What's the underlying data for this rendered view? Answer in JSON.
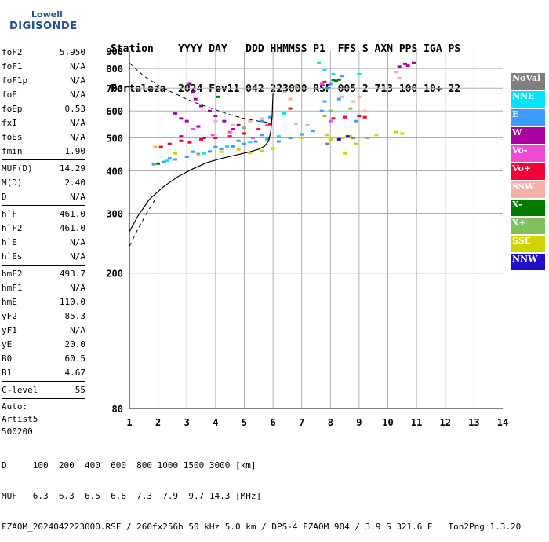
{
  "logo": {
    "line1": "Lowell",
    "line2": "DIGISONDE"
  },
  "header": {
    "line1": "Station    YYYY DAY   DDD HHMMSS P1  FFS S AXN PPS IGA PS",
    "line2": "Fortaleza  2024 Fev11 042 223000 RSF 005 2 713 100 10+ 22"
  },
  "params": [
    {
      "label": "foF2",
      "value": "5.950"
    },
    {
      "label": "foF1",
      "value": "N/A"
    },
    {
      "label": "foF1p",
      "value": "N/A"
    },
    {
      "label": "foE",
      "value": "N/A"
    },
    {
      "label": "foEp",
      "value": "0.53"
    },
    {
      "label": "fxI",
      "value": "N/A"
    },
    {
      "label": "foEs",
      "value": "N/A"
    },
    {
      "label": "fmin",
      "value": "1.90"
    },
    {
      "sep": true
    },
    {
      "label": "MUF(D)",
      "value": "14.29"
    },
    {
      "label": "M(D)",
      "value": "2.40"
    },
    {
      "label": "D",
      "value": "N/A"
    },
    {
      "sep": true
    },
    {
      "label": "h`F",
      "value": "461.0"
    },
    {
      "label": "h`F2",
      "value": "461.0"
    },
    {
      "label": "h`E",
      "value": "N/A"
    },
    {
      "label": "h`Es",
      "value": "N/A"
    },
    {
      "sep": true
    },
    {
      "label": "hmF2",
      "value": "493.7"
    },
    {
      "label": "hmF1",
      "value": "N/A"
    },
    {
      "label": "hmE",
      "value": "110.0"
    },
    {
      "label": "yF2",
      "value": "85.3"
    },
    {
      "label": "yF1",
      "value": "N/A"
    },
    {
      "label": "yE",
      "value": "20.0"
    },
    {
      "label": "B0",
      "value": "60.5"
    },
    {
      "label": "B1",
      "value": "4.67"
    },
    {
      "sep": true
    },
    {
      "label": "C-level",
      "value": "55"
    },
    {
      "sep": true
    },
    {
      "info": "Auto:"
    },
    {
      "info": "Artist5"
    },
    {
      "info": "500200"
    }
  ],
  "legend": [
    {
      "label": "NoVal",
      "color": "#808080"
    },
    {
      "label": "NNE",
      "color": "#00e4ff"
    },
    {
      "label": "E",
      "color": "#3c9cff"
    },
    {
      "label": "W",
      "color": "#aa009f"
    },
    {
      "label": "Vo-",
      "color": "#f04ad2"
    },
    {
      "label": "Vo+",
      "color": "#f20038"
    },
    {
      "label": "SSW",
      "color": "#f6b0a8"
    },
    {
      "label": "X-",
      "color": "#007a00"
    },
    {
      "label": "X+",
      "color": "#80c060"
    },
    {
      "label": "SSE",
      "color": "#d2d200"
    },
    {
      "label": "NNW",
      "color": "#2010c8"
    }
  ],
  "footer": {
    "line1": "D     100  200  400  600  800 1000 1500 3000 [km]",
    "line2": "MUF   6.3  6.3  6.5  6.8  7.3  7.9  9.7 14.3 [MHz]",
    "line3": "FZA0M_2024042223000.RSF / 260fx256h 50 kHz 5.0 km / DPS-4 FZA0M 904 / 3.9 S 321.6 E   Ion2Png 1.3.20"
  },
  "chart_data": {
    "type": "scatter",
    "xlim": [
      1,
      14
    ],
    "ylim": [
      80,
      900
    ],
    "x_ticks": [
      1,
      2,
      3,
      4,
      5,
      6,
      7,
      8,
      9,
      10,
      11,
      12,
      13,
      14
    ],
    "y_ticks": [
      80,
      200,
      300,
      400,
      500,
      600,
      700,
      800,
      900
    ],
    "grid": true,
    "y_scale": "log",
    "series": [
      {
        "name": "E",
        "color": "#3c9cff",
        "points": [
          [
            1.85,
            418
          ],
          [
            2.2,
            425
          ],
          [
            2.6,
            432
          ],
          [
            3.0,
            440
          ],
          [
            3.4,
            448
          ],
          [
            3.8,
            456
          ],
          [
            4.2,
            464
          ],
          [
            4.6,
            472
          ],
          [
            5.0,
            480
          ],
          [
            5.4,
            488
          ],
          [
            5.8,
            496
          ],
          [
            2.4,
            435
          ],
          [
            3.2,
            455
          ],
          [
            4.0,
            470
          ],
          [
            4.8,
            490
          ],
          [
            5.6,
            510
          ],
          [
            6.2,
            488
          ],
          [
            6.6,
            500
          ],
          [
            7.0,
            512
          ],
          [
            7.4,
            524
          ],
          [
            7.7,
            600
          ],
          [
            7.8,
            640
          ],
          [
            7.9,
            700
          ],
          [
            8.0,
            720
          ],
          [
            8.3,
            650
          ],
          [
            8.4,
            760
          ],
          [
            8.9,
            560
          ],
          [
            9.0,
            580
          ],
          [
            5.6,
            560
          ],
          [
            5.9,
            575
          ]
        ]
      },
      {
        "name": "NNE",
        "color": "#00e4ff",
        "points": [
          [
            2.3,
            428
          ],
          [
            3.6,
            450
          ],
          [
            4.4,
            472
          ],
          [
            5.2,
            486
          ],
          [
            5.9,
            545
          ],
          [
            6.4,
            590
          ],
          [
            7.6,
            830
          ],
          [
            7.8,
            790
          ],
          [
            8.1,
            770
          ],
          [
            9.0,
            770
          ],
          [
            6.2,
            505
          ]
        ]
      },
      {
        "name": "W",
        "color": "#aa009f",
        "points": [
          [
            3.1,
            720
          ],
          [
            3.2,
            680
          ],
          [
            3.3,
            650
          ],
          [
            3.5,
            620
          ],
          [
            3.8,
            600
          ],
          [
            4.0,
            580
          ],
          [
            4.3,
            560
          ],
          [
            2.6,
            590
          ],
          [
            2.8,
            570
          ],
          [
            3.0,
            560
          ],
          [
            3.4,
            540
          ],
          [
            4.6,
            530
          ],
          [
            2.8,
            505
          ],
          [
            3.6,
            500
          ],
          [
            4.8,
            545
          ],
          [
            10.4,
            810
          ],
          [
            10.6,
            825
          ],
          [
            10.7,
            815
          ],
          [
            10.9,
            830
          ]
        ]
      },
      {
        "name": "Vo-",
        "color": "#f04ad2",
        "points": [
          [
            3.2,
            530
          ],
          [
            3.9,
            510
          ],
          [
            4.5,
            520
          ],
          [
            5.3,
            500
          ],
          [
            5.8,
            545
          ],
          [
            7.7,
            720
          ],
          [
            8.0,
            560
          ],
          [
            8.5,
            575
          ]
        ]
      },
      {
        "name": "Vo+",
        "color": "#f20038",
        "points": [
          [
            2.1,
            470
          ],
          [
            2.4,
            480
          ],
          [
            2.8,
            490
          ],
          [
            3.1,
            485
          ],
          [
            3.5,
            495
          ],
          [
            4.0,
            500
          ],
          [
            4.5,
            505
          ],
          [
            5.0,
            515
          ],
          [
            5.5,
            530
          ],
          [
            5.9,
            550
          ],
          [
            6.6,
            610
          ],
          [
            7.8,
            730
          ],
          [
            8.1,
            570
          ],
          [
            8.5,
            575
          ],
          [
            9.0,
            580
          ],
          [
            9.2,
            575
          ]
        ]
      },
      {
        "name": "SSW",
        "color": "#f6b0a8",
        "points": [
          [
            4.0,
            560
          ],
          [
            4.6,
            545
          ],
          [
            5.2,
            560
          ],
          [
            5.6,
            570
          ],
          [
            6.4,
            680
          ],
          [
            6.6,
            650
          ],
          [
            6.8,
            550
          ],
          [
            7.2,
            545
          ],
          [
            8.4,
            660
          ],
          [
            8.8,
            640
          ],
          [
            9.0,
            660
          ],
          [
            9.2,
            600
          ],
          [
            10.3,
            780
          ],
          [
            10.4,
            750
          ]
        ]
      },
      {
        "name": "X-",
        "color": "#007a00",
        "points": [
          [
            8.1,
            740
          ],
          [
            8.2,
            735
          ],
          [
            8.3,
            742
          ],
          [
            2.0,
            420
          ],
          [
            4.1,
            660
          ]
        ]
      },
      {
        "name": "X+",
        "color": "#80c060",
        "points": [
          [
            5.0,
            535
          ],
          [
            6.8,
            710
          ],
          [
            7.8,
            580
          ],
          [
            8.0,
            600
          ],
          [
            8.7,
            610
          ],
          [
            9.3,
            500
          ]
        ]
      },
      {
        "name": "SSE",
        "color": "#d2d200",
        "points": [
          [
            1.9,
            470
          ],
          [
            2.6,
            450
          ],
          [
            3.4,
            445
          ],
          [
            4.2,
            455
          ],
          [
            4.8,
            462
          ],
          [
            5.2,
            452
          ],
          [
            5.6,
            458
          ],
          [
            6.0,
            465
          ],
          [
            7.0,
            500
          ],
          [
            7.9,
            510
          ],
          [
            8.0,
            495
          ],
          [
            8.4,
            500
          ],
          [
            8.7,
            505
          ],
          [
            8.9,
            480
          ],
          [
            9.6,
            510
          ],
          [
            10.3,
            520
          ],
          [
            10.5,
            515
          ],
          [
            8.5,
            450
          ]
        ]
      },
      {
        "name": "NNW",
        "color": "#2010c8",
        "points": [
          [
            8.3,
            495
          ],
          [
            8.6,
            505
          ]
        ]
      },
      {
        "name": "NoVal",
        "color": "#808080",
        "points": [
          [
            7.9,
            480
          ],
          [
            8.8,
            500
          ]
        ]
      }
    ],
    "profile_line": [
      [
        1.0,
        265
      ],
      [
        1.3,
        295
      ],
      [
        1.7,
        330
      ],
      [
        2.2,
        360
      ],
      [
        2.7,
        385
      ],
      [
        3.2,
        405
      ],
      [
        3.7,
        423
      ],
      [
        4.2,
        435
      ],
      [
        4.7,
        445
      ],
      [
        5.2,
        455
      ],
      [
        5.5,
        463
      ],
      [
        5.7,
        472
      ],
      [
        5.85,
        490
      ],
      [
        5.92,
        520
      ],
      [
        5.97,
        580
      ],
      [
        6.0,
        675
      ]
    ],
    "dashed_lines": [
      [
        [
          1.0,
          830
        ],
        [
          1.5,
          760
        ],
        [
          2.0,
          715
        ],
        [
          2.5,
          680
        ],
        [
          3.0,
          650
        ],
        [
          3.5,
          625
        ],
        [
          4.0,
          605
        ],
        [
          4.5,
          585
        ],
        [
          5.0,
          570
        ],
        [
          5.5,
          560
        ],
        [
          5.85,
          555
        ]
      ],
      [
        [
          1.0,
          240
        ],
        [
          1.3,
          270
        ],
        [
          1.6,
          300
        ],
        [
          1.9,
          330
        ]
      ]
    ]
  }
}
